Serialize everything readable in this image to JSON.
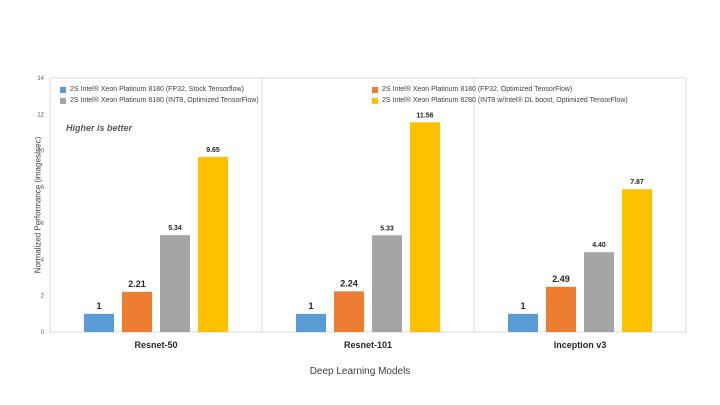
{
  "chart_data": {
    "type": "bar",
    "categories": [
      "Resnet-50",
      "Resnet-101",
      "Inception v3"
    ],
    "series": [
      {
        "name": "2S Intel® Xeon Platinum 8180 (FP32, Stock Tensorflow)",
        "color": "#5b9bd5",
        "values": [
          1,
          1,
          1
        ],
        "labels": [
          "1",
          "1",
          "1"
        ]
      },
      {
        "name": "2S Intel® Xeon Platinum 8180 (FP32, Optimized TensorFlow)",
        "color": "#ed7d31",
        "values": [
          2.21,
          2.24,
          2.49
        ],
        "labels": [
          "2.21",
          "2.24",
          "2.49"
        ]
      },
      {
        "name": "2S Intel® Xeon Platinum 8180 (INT8, Optimized TensorFlow)",
        "color": "#a5a5a5",
        "values": [
          5.34,
          5.33,
          4.4
        ],
        "labels": [
          "5.34",
          "5.33",
          "4.40"
        ]
      },
      {
        "name": "2S Intel® Xeon Platinum 8280 (INT8 w/Intel® DL boost, Optimized TensorFlow)",
        "color": "#ffc000",
        "values": [
          9.65,
          11.56,
          7.87
        ],
        "labels": [
          "9.65",
          "11.56",
          "7.87"
        ]
      }
    ],
    "ylim": [
      0,
      14
    ],
    "yticks": [
      0,
      2,
      4,
      6,
      8,
      10,
      12,
      14
    ],
    "xlabel": "Deep Learning Models",
    "ylabel": "Normalized Performance (images/sec)",
    "annotation": "Higher is better",
    "grid": "vertical separators between categories",
    "legend_position": "top"
  }
}
